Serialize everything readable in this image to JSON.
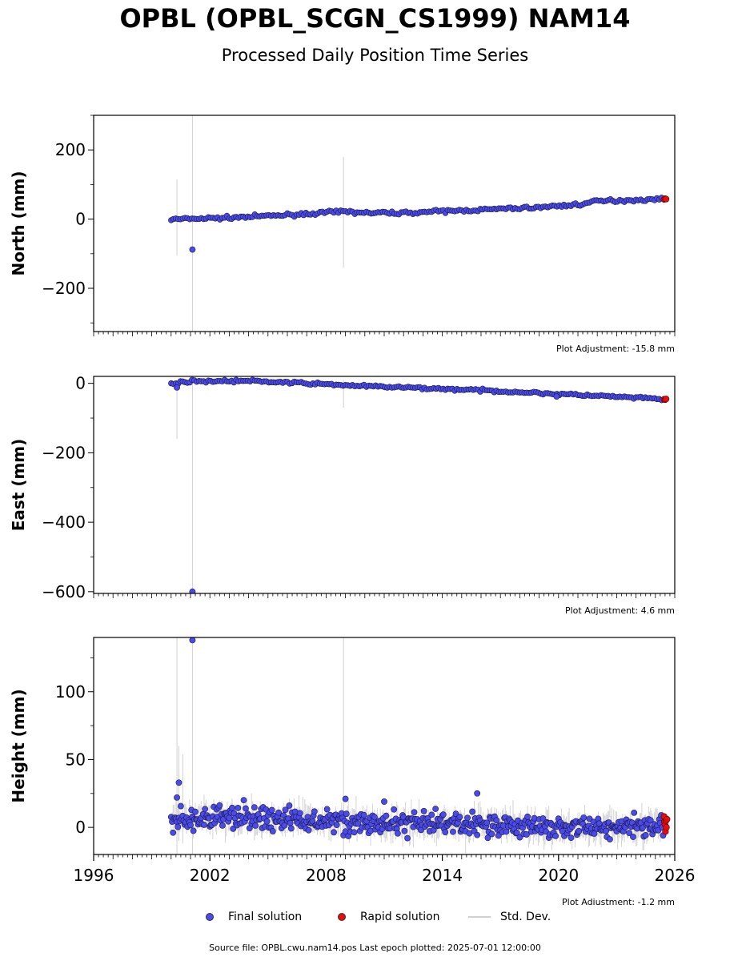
{
  "title": "OPBL (OPBL_SCGN_CS1999) NAM14",
  "subtitle": "Processed Daily Position Time Series",
  "colors": {
    "final": "#4a4aef",
    "rapid": "#e80c0c",
    "stddev": "#d0d0d0",
    "outline": "#1a1a3a"
  },
  "legend": {
    "final": "Final solution",
    "rapid": "Rapid solution",
    "stddev": "Std. Dev."
  },
  "source_text": "Source file: OPBL.cwu.nam14.pos  Last epoch plotted: 2025-07-01 12:00:00",
  "chart_data": [
    {
      "type": "scatter",
      "ylabel": "North (mm)",
      "xlim": [
        1996,
        2026
      ],
      "ylim": [
        -325,
        300
      ],
      "yticks": [
        -200,
        0,
        200
      ],
      "ytick_labels": [
        "−200",
        "0",
        "200"
      ],
      "adjustment": "Plot Adjustment: -15.8 mm",
      "trend": [
        [
          2000.0,
          -1
        ],
        [
          2001.0,
          1
        ],
        [
          2003.0,
          4
        ],
        [
          2006.0,
          12
        ],
        [
          2009.0,
          22
        ],
        [
          2010.0,
          18
        ],
        [
          2012.0,
          18
        ],
        [
          2016.0,
          27
        ],
        [
          2019.0,
          34
        ],
        [
          2021.0,
          42
        ],
        [
          2022.0,
          52
        ],
        [
          2025.5,
          58
        ]
      ],
      "noise": 3,
      "outliers": [
        [
          2001.1,
          -88
        ]
      ],
      "std_spikes": [
        [
          2000.3,
          -105,
          115
        ],
        [
          2001.1,
          -325,
          300
        ],
        [
          2008.9,
          -140,
          180
        ]
      ],
      "rapid": [
        [
          2025.45,
          57
        ],
        [
          2025.5,
          59
        ],
        [
          2025.55,
          58
        ]
      ]
    },
    {
      "type": "scatter",
      "ylabel": "East (mm)",
      "xlim": [
        1996,
        2026
      ],
      "ylim": [
        -605,
        20
      ],
      "yticks": [
        -600,
        -400,
        -200,
        0
      ],
      "ytick_labels": [
        "−600",
        "−400",
        "−200",
        "0"
      ],
      "adjustment": "Plot Adjustment: 4.6 mm",
      "trend": [
        [
          2000.0,
          0
        ],
        [
          2001.0,
          6
        ],
        [
          2004.0,
          7
        ],
        [
          2007.0,
          0
        ],
        [
          2010.0,
          -8
        ],
        [
          2013.0,
          -14
        ],
        [
          2016.0,
          -20
        ],
        [
          2019.0,
          -28
        ],
        [
          2022.0,
          -36
        ],
        [
          2025.5,
          -46
        ]
      ],
      "noise": 2.5,
      "outliers": [
        [
          2000.3,
          -12
        ],
        [
          2001.1,
          -600
        ],
        [
          2019.9,
          -38
        ]
      ],
      "std_spikes": [
        [
          2000.3,
          -160,
          10
        ],
        [
          2001.1,
          -605,
          20
        ],
        [
          2008.9,
          -70,
          10
        ]
      ],
      "rapid": [
        [
          2025.45,
          -46
        ],
        [
          2025.5,
          -47
        ],
        [
          2025.55,
          -45
        ]
      ]
    },
    {
      "type": "scatter",
      "ylabel": "Height (mm)",
      "xlim": [
        1996,
        2026
      ],
      "ylim": [
        -20,
        140
      ],
      "yticks": [
        0,
        50,
        100
      ],
      "ytick_labels": [
        "0",
        "50",
        "100"
      ],
      "xticks": [
        1996,
        2002,
        2008,
        2014,
        2020,
        2026
      ],
      "adjustment": "Plot Adjustment: -1.2 mm",
      "trend": [
        [
          2000.0,
          4
        ],
        [
          2003.0,
          8
        ],
        [
          2006.0,
          6
        ],
        [
          2009.0,
          4
        ],
        [
          2012.0,
          2
        ],
        [
          2016.0,
          3
        ],
        [
          2019.0,
          0
        ],
        [
          2022.0,
          0
        ],
        [
          2025.5,
          2
        ]
      ],
      "noise": 6,
      "outliers": [
        [
          2001.1,
          138
        ],
        [
          2000.4,
          33
        ],
        [
          2000.3,
          22
        ],
        [
          2015.8,
          25
        ],
        [
          2011.0,
          19
        ],
        [
          2009.0,
          21
        ]
      ],
      "std_spikes": [
        [
          2000.3,
          -20,
          140
        ],
        [
          2001.1,
          -20,
          140
        ],
        [
          2008.9,
          -20,
          140
        ],
        [
          2000.4,
          -10,
          60
        ],
        [
          2000.6,
          -12,
          54
        ]
      ],
      "rapid": [
        [
          2025.45,
          8
        ],
        [
          2025.47,
          4
        ],
        [
          2025.5,
          2
        ],
        [
          2025.52,
          -3
        ],
        [
          2025.55,
          5
        ],
        [
          2025.57,
          0
        ],
        [
          2025.6,
          6
        ]
      ]
    }
  ]
}
